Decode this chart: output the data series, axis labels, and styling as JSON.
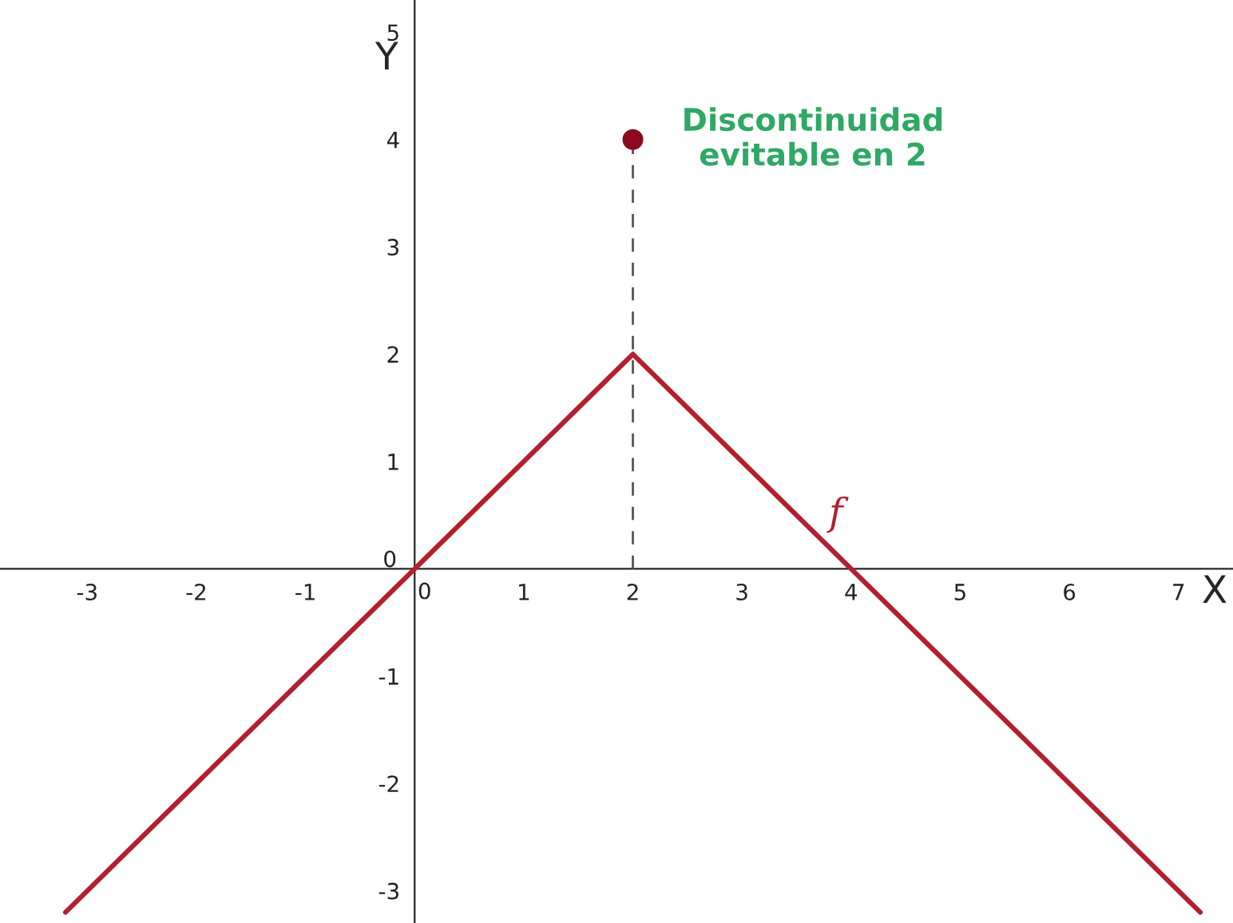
{
  "chart_data": {
    "type": "line",
    "xlabel": "X",
    "ylabel": "Y",
    "xlim": [
      -3.8,
      7.5
    ],
    "ylim": [
      -3.3,
      5.3
    ],
    "xticks": [
      -3,
      -2,
      -1,
      0,
      1,
      2,
      3,
      4,
      5,
      6,
      7
    ],
    "yticks": [
      -3,
      -2,
      -1,
      0,
      1,
      2,
      3,
      4,
      5
    ],
    "series": [
      {
        "name": "f",
        "color": "#b2202e",
        "x": [
          -3.2,
          2,
          7.2
        ],
        "values": [
          -3.2,
          2,
          -3.2
        ],
        "line_style": "solid"
      },
      {
        "color": "#555555",
        "x": [
          2,
          2
        ],
        "values": [
          0,
          4
        ],
        "line_style": "dashed"
      },
      {
        "type": "scatter",
        "color": "#8b0a1e",
        "x": [
          2
        ],
        "values": [
          4
        ],
        "marker": "circle"
      }
    ],
    "annotations": [
      {
        "text": "Discontinuidad\nevitable en 2",
        "x": 2,
        "y": 4
      }
    ],
    "grid": false,
    "legend": false
  }
}
